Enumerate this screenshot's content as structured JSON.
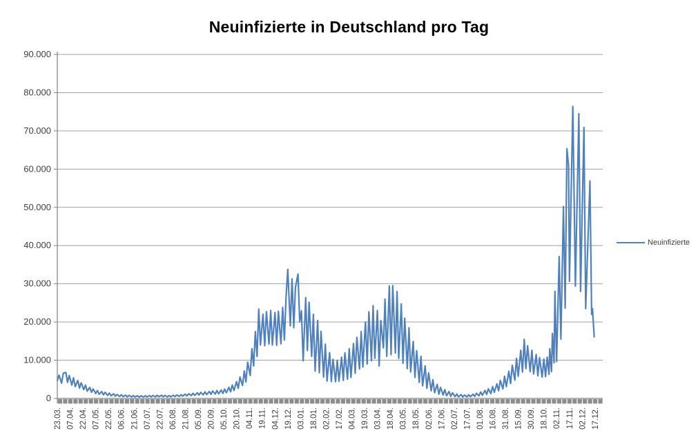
{
  "title": "Neuinfizierte in Deutschland pro Tag",
  "legend": {
    "label": "Neuinfizierte"
  },
  "colors": {
    "series": "#4F81BD",
    "gridline": "#A0A0A0",
    "axis": "#808080",
    "tick_band": "#8C8C8C",
    "label_text": "#3f3f3f",
    "title_text": "#000000",
    "background": "#FFFFFF"
  },
  "chart_data": {
    "type": "line",
    "title": "Neuinfizierte in Deutschland pro Tag",
    "xlabel": "",
    "ylabel": "",
    "grid": "horizontal",
    "legend_position": "right",
    "ylim": [
      0,
      90000
    ],
    "y_ticks": [
      0,
      10000,
      20000,
      30000,
      40000,
      50000,
      60000,
      70000,
      80000,
      90000
    ],
    "y_tick_labels": [
      "0",
      "10.000",
      "20.000",
      "30.000",
      "40.000",
      "50.000",
      "60.000",
      "70.000",
      "80.000",
      "90.000"
    ],
    "x_domain": [
      0,
      639
    ],
    "x_label_interval_days": 15,
    "x_tick_labels": [
      "23.03.",
      "07.04.",
      "22.04.",
      "07.05.",
      "22.05.",
      "06.06.",
      "21.06.",
      "07.07.",
      "22.07.",
      "06.08.",
      "21.08.",
      "05.09.",
      "20.09.",
      "05.10.",
      "20.10.",
      "04.11.",
      "19.11.",
      "04.12.",
      "19.12.",
      "03.01.",
      "18.01.",
      "02.02.",
      "17.02.",
      "04.03.",
      "19.03.",
      "03.04.",
      "18.04.",
      "03.05.",
      "18.05.",
      "02.06.",
      "17.06.",
      "02.07.",
      "17.07.",
      "01.08.",
      "16.08.",
      "31.08.",
      "15.09.",
      "30.09.",
      "18.10.",
      "02.11.",
      "17.11.",
      "02.12.",
      "17.12."
    ],
    "series": [
      {
        "name": "Neuinfizierte",
        "color": "#4F81BD",
        "points": [
          [
            0,
            4700
          ],
          [
            2,
            6100
          ],
          [
            5,
            4000
          ],
          [
            7,
            6600
          ],
          [
            10,
            6800
          ],
          [
            12,
            4200
          ],
          [
            14,
            6000
          ],
          [
            17,
            3500
          ],
          [
            19,
            5400
          ],
          [
            21,
            3100
          ],
          [
            24,
            4700
          ],
          [
            26,
            2700
          ],
          [
            28,
            4100
          ],
          [
            31,
            2300
          ],
          [
            33,
            3500
          ],
          [
            35,
            1900
          ],
          [
            38,
            2900
          ],
          [
            40,
            1600
          ],
          [
            42,
            2500
          ],
          [
            45,
            1300
          ],
          [
            47,
            2100
          ],
          [
            49,
            1100
          ],
          [
            52,
            1800
          ],
          [
            54,
            950
          ],
          [
            56,
            1600
          ],
          [
            59,
            800
          ],
          [
            61,
            1400
          ],
          [
            63,
            700
          ],
          [
            66,
            1200
          ],
          [
            68,
            600
          ],
          [
            70,
            1050
          ],
          [
            73,
            520
          ],
          [
            75,
            950
          ],
          [
            77,
            470
          ],
          [
            80,
            870
          ],
          [
            82,
            420
          ],
          [
            84,
            800
          ],
          [
            87,
            390
          ],
          [
            89,
            750
          ],
          [
            91,
            370
          ],
          [
            94,
            710
          ],
          [
            96,
            360
          ],
          [
            98,
            690
          ],
          [
            101,
            370
          ],
          [
            103,
            710
          ],
          [
            105,
            390
          ],
          [
            108,
            740
          ],
          [
            110,
            410
          ],
          [
            112,
            780
          ],
          [
            115,
            430
          ],
          [
            117,
            810
          ],
          [
            119,
            450
          ],
          [
            122,
            830
          ],
          [
            124,
            440
          ],
          [
            126,
            800
          ],
          [
            129,
            420
          ],
          [
            131,
            780
          ],
          [
            133,
            440
          ],
          [
            136,
            830
          ],
          [
            138,
            490
          ],
          [
            140,
            900
          ],
          [
            143,
            550
          ],
          [
            145,
            1000
          ],
          [
            147,
            610
          ],
          [
            150,
            1110
          ],
          [
            152,
            670
          ],
          [
            154,
            1230
          ],
          [
            157,
            740
          ],
          [
            159,
            1350
          ],
          [
            161,
            810
          ],
          [
            164,
            1470
          ],
          [
            166,
            880
          ],
          [
            168,
            1590
          ],
          [
            171,
            950
          ],
          [
            173,
            1710
          ],
          [
            175,
            1020
          ],
          [
            178,
            1830
          ],
          [
            180,
            1090
          ],
          [
            182,
            1950
          ],
          [
            185,
            1160
          ],
          [
            187,
            2070
          ],
          [
            189,
            1230
          ],
          [
            192,
            2200
          ],
          [
            194,
            1320
          ],
          [
            196,
            2450
          ],
          [
            198,
            1500
          ],
          [
            201,
            2900
          ],
          [
            203,
            1750
          ],
          [
            205,
            3500
          ],
          [
            207,
            2100
          ],
          [
            210,
            4400
          ],
          [
            212,
            2650
          ],
          [
            214,
            5600
          ],
          [
            217,
            3400
          ],
          [
            219,
            7200
          ],
          [
            221,
            4300
          ],
          [
            223,
            9500
          ],
          [
            226,
            6000
          ],
          [
            228,
            13000
          ],
          [
            230,
            8500
          ],
          [
            232,
            17500
          ],
          [
            234,
            11000
          ],
          [
            236,
            23400
          ],
          [
            238,
            14000
          ],
          [
            241,
            22000
          ],
          [
            243,
            13800
          ],
          [
            245,
            22700
          ],
          [
            248,
            14200
          ],
          [
            250,
            23000
          ],
          [
            252,
            14000
          ],
          [
            255,
            22500
          ],
          [
            257,
            13900
          ],
          [
            259,
            22800
          ],
          [
            262,
            14300
          ],
          [
            264,
            23800
          ],
          [
            266,
            15300
          ],
          [
            268,
            26500
          ],
          [
            270,
            33777
          ],
          [
            273,
            19000
          ],
          [
            275,
            31300
          ],
          [
            277,
            18500
          ],
          [
            279,
            29000
          ],
          [
            282,
            32552
          ],
          [
            284,
            20000
          ],
          [
            286,
            22924
          ],
          [
            288,
            9847
          ],
          [
            291,
            26391
          ],
          [
            293,
            12497
          ],
          [
            295,
            25164
          ],
          [
            298,
            11000
          ],
          [
            300,
            22000
          ],
          [
            302,
            7141
          ],
          [
            305,
            20398
          ],
          [
            307,
            6729
          ],
          [
            309,
            17553
          ],
          [
            312,
            5608
          ],
          [
            314,
            14211
          ],
          [
            316,
            4535
          ],
          [
            319,
            12000
          ],
          [
            321,
            4426
          ],
          [
            323,
            10237
          ],
          [
            326,
            4369
          ],
          [
            328,
            9997
          ],
          [
            330,
            4500
          ],
          [
            333,
            10800
          ],
          [
            335,
            4732
          ],
          [
            337,
            11912
          ],
          [
            340,
            5011
          ],
          [
            342,
            13000
          ],
          [
            344,
            5500
          ],
          [
            347,
            14356
          ],
          [
            349,
            6604
          ],
          [
            351,
            16000
          ],
          [
            354,
            7709
          ],
          [
            356,
            17504
          ],
          [
            358,
            8200
          ],
          [
            361,
            20000
          ],
          [
            363,
            9000
          ],
          [
            365,
            22657
          ],
          [
            368,
            9872
          ],
          [
            370,
            24300
          ],
          [
            372,
            10500
          ],
          [
            375,
            23000
          ],
          [
            377,
            8497
          ],
          [
            379,
            20407
          ],
          [
            382,
            13245
          ],
          [
            384,
            26000
          ],
          [
            386,
            11000
          ],
          [
            389,
            29426
          ],
          [
            391,
            11437
          ],
          [
            393,
            29518
          ],
          [
            396,
            11907
          ],
          [
            398,
            28000
          ],
          [
            400,
            10500
          ],
          [
            403,
            24736
          ],
          [
            405,
            9160
          ],
          [
            407,
            21000
          ],
          [
            410,
            7800
          ],
          [
            412,
            18485
          ],
          [
            414,
            6922
          ],
          [
            417,
            14909
          ],
          [
            419,
            5500
          ],
          [
            421,
            12500
          ],
          [
            424,
            4209
          ],
          [
            426,
            11040
          ],
          [
            428,
            3300
          ],
          [
            431,
            8500
          ],
          [
            433,
            2626
          ],
          [
            435,
            6714
          ],
          [
            438,
            1978
          ],
          [
            440,
            4917
          ],
          [
            442,
            1500
          ],
          [
            445,
            3700
          ],
          [
            447,
            1117
          ],
          [
            449,
            2900
          ],
          [
            452,
            900
          ],
          [
            454,
            2294
          ],
          [
            456,
            700
          ],
          [
            459,
            1800
          ],
          [
            461,
            560
          ],
          [
            463,
            1455
          ],
          [
            466,
            470
          ],
          [
            468,
            1150
          ],
          [
            470,
            420
          ],
          [
            473,
            1008
          ],
          [
            475,
            400
          ],
          [
            477,
            892
          ],
          [
            480,
            420
          ],
          [
            482,
            970
          ],
          [
            484,
            460
          ],
          [
            487,
            1100
          ],
          [
            489,
            546
          ],
          [
            491,
            1350
          ],
          [
            494,
            680
          ],
          [
            496,
            1700
          ],
          [
            498,
            850
          ],
          [
            501,
            2089
          ],
          [
            503,
            1050
          ],
          [
            505,
            2550
          ],
          [
            508,
            1300
          ],
          [
            510,
            3100
          ],
          [
            512,
            1600
          ],
          [
            515,
            3800
          ],
          [
            517,
            2000
          ],
          [
            519,
            4700
          ],
          [
            522,
            2500
          ],
          [
            524,
            5800
          ],
          [
            526,
            3100
          ],
          [
            529,
            7100
          ],
          [
            531,
            3900
          ],
          [
            533,
            8700
          ],
          [
            536,
            4800
          ],
          [
            538,
            10500
          ],
          [
            540,
            5800
          ],
          [
            543,
            12600
          ],
          [
            545,
            6900
          ],
          [
            547,
            15431
          ],
          [
            549,
            7800
          ],
          [
            551,
            13800
          ],
          [
            554,
            7000
          ],
          [
            556,
            12600
          ],
          [
            558,
            6400
          ],
          [
            561,
            11500
          ],
          [
            563,
            5900
          ],
          [
            565,
            10700
          ],
          [
            568,
            5600
          ],
          [
            570,
            10300
          ],
          [
            572,
            5700
          ],
          [
            574,
            10800
          ],
          [
            576,
            6300
          ],
          [
            577,
            13000
          ],
          [
            579,
            7000
          ],
          [
            580,
            17000
          ],
          [
            582,
            9300
          ],
          [
            583,
            28037
          ],
          [
            585,
            9658
          ],
          [
            588,
            37120
          ],
          [
            590,
            15513
          ],
          [
            593,
            50196
          ],
          [
            595,
            23607
          ],
          [
            597,
            65371
          ],
          [
            599,
            61000
          ],
          [
            600,
            30643
          ],
          [
            604,
            76414
          ],
          [
            607,
            29364
          ],
          [
            611,
            74500
          ],
          [
            613,
            28000
          ],
          [
            617,
            70900
          ],
          [
            619,
            23500
          ],
          [
            624,
            56900
          ],
          [
            626,
            22000
          ],
          [
            627,
            23500
          ],
          [
            629,
            16100
          ]
        ]
      }
    ]
  }
}
